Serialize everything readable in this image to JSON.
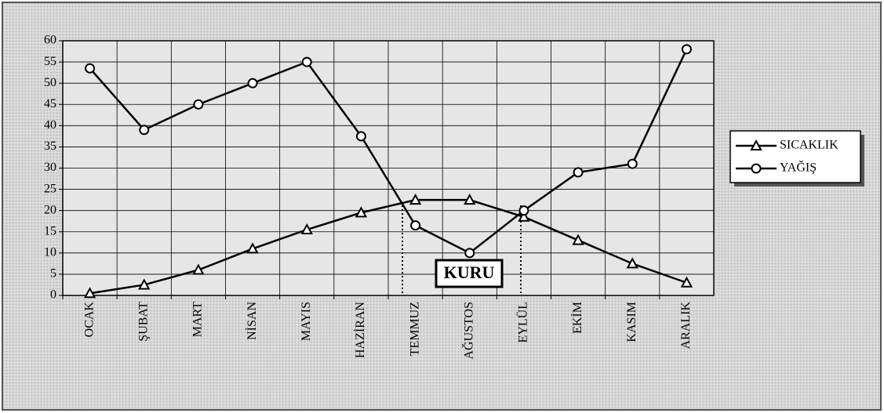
{
  "chart_data": {
    "type": "line",
    "categories": [
      "OCAK",
      "ŞUBAT",
      "MART",
      "NİSAN",
      "MAYIS",
      "HAZİRAN",
      "TEMMUZ",
      "AĞUSTOS",
      "EYLÜL",
      "EKİM",
      "KASIM",
      "ARALIK"
    ],
    "series": [
      {
        "name": "SICAKLIK",
        "color": "#000000",
        "marker": "triangle",
        "values": [
          0.5,
          2.5,
          6,
          11,
          15.5,
          19.5,
          22.5,
          22.5,
          18.5,
          13,
          7.5,
          3
        ]
      },
      {
        "name": "YAĞIŞ",
        "color": "#000000",
        "marker": "circle",
        "values": [
          53.5,
          39,
          45,
          50,
          55,
          37.5,
          16.5,
          10,
          20,
          29,
          31,
          58
        ]
      }
    ],
    "annotation": "KURU",
    "ylim": [
      0,
      60
    ],
    "yticks": [
      0,
      5,
      10,
      15,
      20,
      25,
      30,
      35,
      40,
      45,
      50,
      55,
      60
    ],
    "grid": true,
    "legend": "right"
  }
}
